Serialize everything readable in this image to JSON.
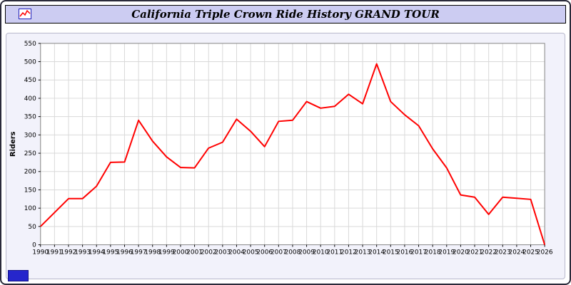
{
  "title": "California Triple Crown Ride History GRAND TOUR",
  "colors": {
    "line": "#ff0000",
    "grid": "#d9d9d9",
    "plot_bg": "#ffffff",
    "panel_bg": "#f2f2fb",
    "titlebar_bg": "#ccccf2",
    "badge": "#2626cc",
    "axis_text": "#000000",
    "plot_border": "#8a8a8a"
  },
  "chart_data": {
    "type": "line",
    "title": "California Triple Crown Ride History GRAND TOUR",
    "xlabel": "",
    "ylabel": "Riders",
    "ylim": [
      0,
      550
    ],
    "ytick_step": 50,
    "yticks": [
      0,
      50,
      100,
      150,
      200,
      250,
      300,
      350,
      400,
      450,
      500,
      550
    ],
    "grid": true,
    "legend_position": "none",
    "x": [
      1990,
      1991,
      1992,
      1993,
      1994,
      1995,
      1996,
      1997,
      1998,
      1999,
      2000,
      2001,
      2002,
      2003,
      2004,
      2005,
      2006,
      2007,
      2008,
      2009,
      2010,
      2011,
      2012,
      2013,
      2014,
      2015,
      2016,
      2017,
      2018,
      2019,
      2020,
      2021,
      2022,
      2023,
      2024,
      2025,
      2026
    ],
    "series": [
      {
        "name": "Riders",
        "color": "#ff0000",
        "values": [
          50,
          88,
          126,
          126,
          160,
          225,
          226,
          340,
          283,
          240,
          211,
          210,
          264,
          280,
          343,
          310,
          268,
          337,
          340,
          391,
          373,
          378,
          411,
          385,
          494,
          391,
          355,
          325,
          262,
          210,
          136,
          130,
          83,
          130,
          127,
          124,
          0
        ]
      }
    ]
  }
}
